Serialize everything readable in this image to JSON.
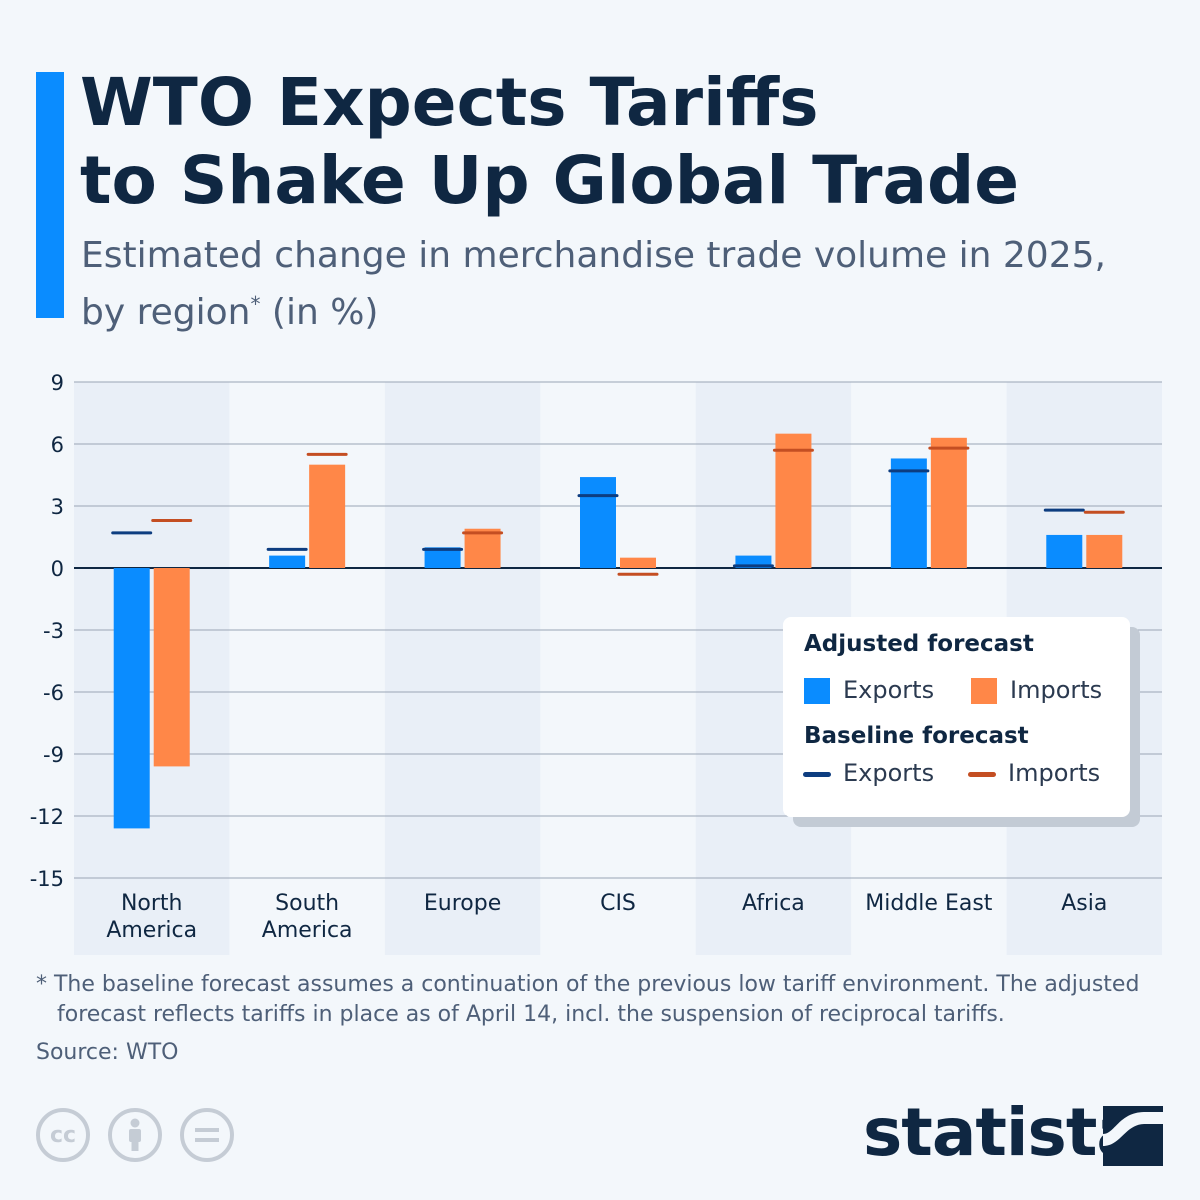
{
  "header": {
    "title_line1": "WTO Expects Tariffs",
    "title_line2": "to Shake Up Global Trade",
    "subtitle_line1": "Estimated change in merchandise trade volume in 2025,",
    "subtitle_line2": "by region",
    "subtitle_sup": "*",
    "subtitle_line2_end": " (in %)"
  },
  "chart_data": {
    "type": "bar",
    "categories": [
      "North America",
      "South America",
      "Europe",
      "CIS",
      "Africa",
      "Middle East",
      "Asia"
    ],
    "category_lines": [
      [
        "North",
        "America"
      ],
      [
        "South",
        "America"
      ],
      [
        "Europe"
      ],
      [
        "CIS"
      ],
      [
        "Africa"
      ],
      [
        "Middle East"
      ],
      [
        "Asia"
      ]
    ],
    "series": [
      {
        "name": "Exports",
        "group": "Adjusted forecast",
        "mark": "bar",
        "color": "#0a8cff",
        "values": [
          -12.6,
          0.6,
          1.0,
          4.4,
          0.6,
          5.3,
          1.6
        ]
      },
      {
        "name": "Imports",
        "group": "Adjusted forecast",
        "mark": "bar",
        "color": "#ff8748",
        "values": [
          -9.6,
          5.0,
          1.9,
          0.5,
          6.5,
          6.3,
          1.6
        ]
      },
      {
        "name": "Exports",
        "group": "Baseline forecast",
        "mark": "line",
        "color": "#0d3d80",
        "values": [
          1.7,
          0.9,
          0.9,
          3.5,
          0.1,
          4.7,
          2.8
        ]
      },
      {
        "name": "Imports",
        "group": "Baseline forecast",
        "mark": "line",
        "color": "#c44e22",
        "values": [
          2.3,
          5.5,
          1.7,
          -0.3,
          5.7,
          5.8,
          2.7
        ]
      }
    ],
    "ylim": [
      -15,
      9
    ],
    "yticks": [
      9,
      6,
      3,
      0,
      -3,
      -6,
      -9,
      -12,
      -15
    ],
    "grid": true,
    "legend_placement": "bottom-right"
  },
  "legend": {
    "adjusted_title": "Adjusted forecast",
    "baseline_title": "Baseline forecast",
    "exports": "Exports",
    "imports": "Imports"
  },
  "footer": {
    "note_line1": "* The baseline forecast assumes a continuation of the previous low tariff environment. The adjusted",
    "note_line2": "forecast reflects tariffs in place as of April 14, incl. the suspension of reciprocal tariffs.",
    "source": "Source: WTO",
    "brand": "statista",
    "license_icons": [
      "cc-icon",
      "attribution-icon",
      "no-derivatives-icon"
    ]
  }
}
